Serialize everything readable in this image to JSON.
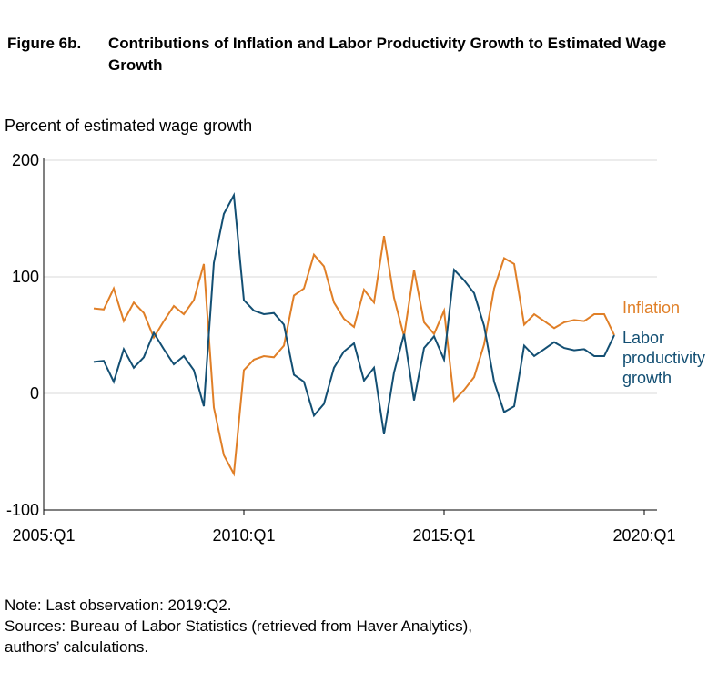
{
  "figure": {
    "label": "Figure 6b.",
    "title": "Contributions of Inflation and Labor Productivity Growth to Estimated Wage Growth",
    "ylabel": "Percent of estimated wage growth"
  },
  "chart_data": {
    "type": "line",
    "title": "Contributions of Inflation and Labor Productivity Growth to Estimated Wage Growth",
    "ylabel": "Percent of estimated wage growth",
    "xlabel": "",
    "ylim": [
      -100,
      200
    ],
    "yticks": [
      200,
      100,
      0,
      -100
    ],
    "xticks": [
      "2005:Q1",
      "2010:Q1",
      "2015:Q1",
      "2020:Q1"
    ],
    "xlim": [
      "2005:Q1",
      "2020:Q1"
    ],
    "grid": "horizontal",
    "x": [
      "2006:Q2",
      "2006:Q3",
      "2006:Q4",
      "2007:Q1",
      "2007:Q2",
      "2007:Q3",
      "2007:Q4",
      "2008:Q1",
      "2008:Q2",
      "2008:Q3",
      "2008:Q4",
      "2009:Q1",
      "2009:Q2",
      "2009:Q3",
      "2009:Q4",
      "2010:Q1",
      "2010:Q2",
      "2010:Q3",
      "2010:Q4",
      "2011:Q1",
      "2011:Q2",
      "2011:Q3",
      "2011:Q4",
      "2012:Q1",
      "2012:Q2",
      "2012:Q3",
      "2012:Q4",
      "2013:Q1",
      "2013:Q2",
      "2013:Q3",
      "2013:Q4",
      "2014:Q1",
      "2014:Q2",
      "2014:Q3",
      "2014:Q4",
      "2015:Q1",
      "2015:Q2",
      "2015:Q3",
      "2015:Q4",
      "2016:Q1",
      "2016:Q2",
      "2016:Q3",
      "2016:Q4",
      "2017:Q1",
      "2017:Q2",
      "2017:Q3",
      "2017:Q4",
      "2018:Q1",
      "2018:Q2",
      "2018:Q3",
      "2018:Q4",
      "2019:Q1",
      "2019:Q2"
    ],
    "series": [
      {
        "name": "Inflation",
        "color": "#E07F27",
        "values": [
          73,
          72,
          90,
          62,
          78,
          69,
          48,
          62,
          75,
          68,
          80,
          111,
          -12,
          -53,
          -69,
          20,
          29,
          32,
          31,
          41,
          84,
          90,
          119,
          109,
          78,
          64,
          57,
          89,
          78,
          135,
          82,
          49,
          106,
          61,
          51,
          71,
          -6,
          3,
          14,
          42,
          90,
          116,
          111,
          59,
          68,
          62,
          56,
          61,
          63,
          62,
          68,
          68,
          50
        ]
      },
      {
        "name": "Labor productivity growth",
        "color": "#134F73",
        "values": [
          27,
          28,
          10,
          38,
          22,
          31,
          52,
          38,
          25,
          32,
          20,
          -11,
          112,
          154,
          170,
          80,
          71,
          68,
          69,
          59,
          16,
          10,
          -19,
          -9,
          22,
          36,
          43,
          11,
          22,
          -35,
          18,
          51,
          -6,
          39,
          49,
          29,
          106,
          97,
          86,
          58,
          10,
          -16,
          -11,
          41,
          32,
          38,
          44,
          39,
          37,
          38,
          32,
          32,
          50
        ]
      }
    ],
    "annotations": [
      "Inflation",
      "Labor productivity growth"
    ]
  },
  "series_labels": {
    "inflation": "Inflation",
    "productivity_line1": "Labor",
    "productivity_line2": "productivity",
    "productivity_line3": "growth"
  },
  "notes": {
    "note": "Note: Last observation: 2019:Q2.",
    "sources_line1": "Sources: Bureau of Labor Statistics (retrieved from Haver Analytics),",
    "sources_line2": "authors’ calculations."
  }
}
